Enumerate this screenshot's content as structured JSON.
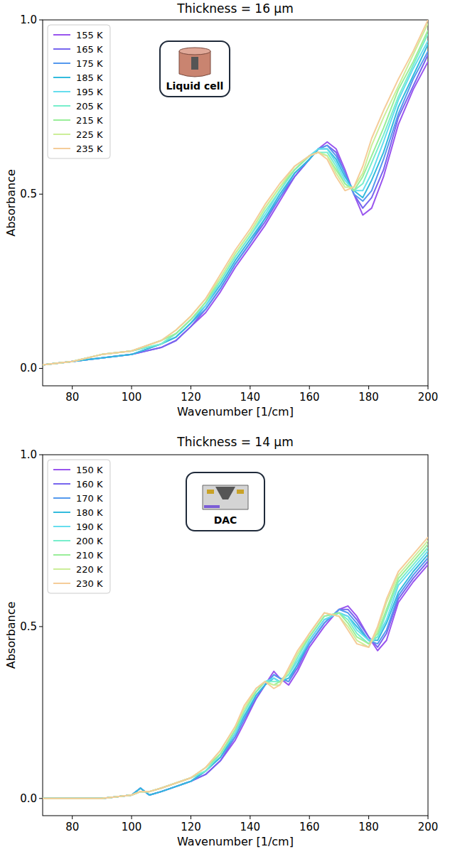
{
  "chart_data": [
    {
      "type": "line",
      "title": "Thickness = 16 µm",
      "x_label": "Wavenumber [1/cm]",
      "y_label": "Absorbance",
      "annotation": "Liquid cell",
      "x": [
        70,
        80,
        90,
        100,
        110,
        115,
        120,
        125,
        130,
        135,
        140,
        145,
        150,
        155,
        160,
        163,
        166,
        169,
        172,
        175,
        178,
        181,
        185,
        190,
        195,
        200
      ],
      "series": [
        {
          "name": "155 K",
          "color": "#9955ee",
          "values": [
            0.01,
            0.02,
            0.03,
            0.04,
            0.06,
            0.08,
            0.12,
            0.16,
            0.22,
            0.29,
            0.35,
            0.41,
            0.48,
            0.55,
            0.6,
            0.63,
            0.65,
            0.63,
            0.57,
            0.5,
            0.44,
            0.46,
            0.55,
            0.7,
            0.8,
            0.88
          ]
        },
        {
          "name": "165 K",
          "color": "#7766ee",
          "values": [
            0.01,
            0.02,
            0.03,
            0.04,
            0.06,
            0.08,
            0.12,
            0.17,
            0.23,
            0.3,
            0.36,
            0.42,
            0.49,
            0.55,
            0.6,
            0.63,
            0.64,
            0.62,
            0.56,
            0.5,
            0.46,
            0.49,
            0.57,
            0.72,
            0.81,
            0.9
          ]
        },
        {
          "name": "175 K",
          "color": "#5599ee",
          "values": [
            0.01,
            0.02,
            0.03,
            0.04,
            0.07,
            0.09,
            0.13,
            0.17,
            0.23,
            0.3,
            0.36,
            0.43,
            0.49,
            0.56,
            0.6,
            0.63,
            0.64,
            0.61,
            0.56,
            0.5,
            0.48,
            0.51,
            0.6,
            0.73,
            0.83,
            0.91
          ]
        },
        {
          "name": "185 K",
          "color": "#33bbdd",
          "values": [
            0.01,
            0.02,
            0.03,
            0.04,
            0.07,
            0.09,
            0.13,
            0.18,
            0.24,
            0.31,
            0.37,
            0.43,
            0.5,
            0.56,
            0.6,
            0.63,
            0.63,
            0.6,
            0.55,
            0.51,
            0.49,
            0.54,
            0.62,
            0.75,
            0.84,
            0.93
          ]
        },
        {
          "name": "195 K",
          "color": "#66ddee",
          "values": [
            0.01,
            0.02,
            0.04,
            0.05,
            0.07,
            0.1,
            0.14,
            0.18,
            0.25,
            0.32,
            0.38,
            0.44,
            0.51,
            0.57,
            0.61,
            0.63,
            0.63,
            0.59,
            0.54,
            0.51,
            0.51,
            0.56,
            0.65,
            0.77,
            0.86,
            0.94
          ]
        },
        {
          "name": "205 K",
          "color": "#77eecc",
          "values": [
            0.01,
            0.02,
            0.04,
            0.05,
            0.07,
            0.1,
            0.14,
            0.19,
            0.25,
            0.32,
            0.38,
            0.45,
            0.51,
            0.57,
            0.61,
            0.62,
            0.62,
            0.58,
            0.53,
            0.51,
            0.53,
            0.59,
            0.67,
            0.78,
            0.87,
            0.96
          ]
        },
        {
          "name": "215 K",
          "color": "#99ee99",
          "values": [
            0.01,
            0.02,
            0.04,
            0.05,
            0.08,
            0.1,
            0.14,
            0.19,
            0.26,
            0.33,
            0.39,
            0.46,
            0.52,
            0.57,
            0.61,
            0.62,
            0.61,
            0.57,
            0.53,
            0.51,
            0.55,
            0.61,
            0.69,
            0.8,
            0.88,
            0.97
          ]
        },
        {
          "name": "225 K",
          "color": "#ccee99",
          "values": [
            0.01,
            0.02,
            0.04,
            0.05,
            0.08,
            0.11,
            0.15,
            0.2,
            0.26,
            0.33,
            0.39,
            0.46,
            0.52,
            0.58,
            0.61,
            0.62,
            0.61,
            0.56,
            0.52,
            0.52,
            0.56,
            0.64,
            0.72,
            0.81,
            0.9,
            0.99
          ]
        },
        {
          "name": "235 K",
          "color": "#f5cc99",
          "values": [
            0.01,
            0.02,
            0.04,
            0.05,
            0.08,
            0.11,
            0.15,
            0.2,
            0.27,
            0.34,
            0.4,
            0.47,
            0.53,
            0.58,
            0.61,
            0.62,
            0.6,
            0.55,
            0.51,
            0.52,
            0.58,
            0.66,
            0.74,
            0.83,
            0.91,
            1.0
          ]
        }
      ],
      "xlim": [
        70,
        200
      ],
      "ylim": [
        -0.05,
        1.0
      ],
      "xticks": [
        80,
        100,
        120,
        140,
        160,
        180,
        200
      ],
      "yticks": [
        {
          "value": 0,
          "label": "0.0"
        },
        {
          "value": 0.5,
          "label": "0.5"
        },
        {
          "value": 1,
          "label": "1.0"
        }
      ],
      "legend": "upper left"
    },
    {
      "type": "line",
      "title": "Thickness = 14 µm",
      "x_label": "Wavenumber [1/cm]",
      "y_label": "Absorbance",
      "annotation": "DAC",
      "x": [
        70,
        80,
        90,
        100,
        103,
        106,
        110,
        120,
        125,
        130,
        135,
        138,
        142,
        145,
        148,
        150,
        153,
        156,
        160,
        165,
        170,
        173,
        176,
        180,
        183,
        186,
        190,
        195,
        200
      ],
      "series": [
        {
          "name": "150 K",
          "color": "#9955ee",
          "values": [
            0,
            0,
            0,
            0.01,
            0.03,
            0.01,
            0.02,
            0.05,
            0.07,
            0.11,
            0.17,
            0.22,
            0.29,
            0.33,
            0.37,
            0.35,
            0.33,
            0.37,
            0.44,
            0.5,
            0.55,
            0.56,
            0.53,
            0.47,
            0.43,
            0.46,
            0.57,
            0.63,
            0.68
          ]
        },
        {
          "name": "160 K",
          "color": "#7766ee",
          "values": [
            0,
            0,
            0,
            0.01,
            0.03,
            0.01,
            0.02,
            0.05,
            0.07,
            0.11,
            0.18,
            0.23,
            0.29,
            0.33,
            0.36,
            0.35,
            0.34,
            0.38,
            0.45,
            0.51,
            0.55,
            0.55,
            0.52,
            0.47,
            0.44,
            0.48,
            0.58,
            0.64,
            0.69
          ]
        },
        {
          "name": "170 K",
          "color": "#5599ee",
          "values": [
            0,
            0,
            0,
            0.01,
            0.03,
            0.01,
            0.02,
            0.05,
            0.08,
            0.12,
            0.18,
            0.23,
            0.3,
            0.33,
            0.36,
            0.35,
            0.34,
            0.39,
            0.45,
            0.51,
            0.55,
            0.54,
            0.51,
            0.46,
            0.45,
            0.49,
            0.59,
            0.65,
            0.7
          ]
        },
        {
          "name": "180 K",
          "color": "#33bbdd",
          "values": [
            0,
            0,
            0,
            0.01,
            0.03,
            0.01,
            0.02,
            0.05,
            0.08,
            0.12,
            0.19,
            0.24,
            0.3,
            0.33,
            0.35,
            0.34,
            0.35,
            0.39,
            0.46,
            0.52,
            0.54,
            0.53,
            0.5,
            0.46,
            0.46,
            0.51,
            0.6,
            0.66,
            0.71
          ]
        },
        {
          "name": "190 K",
          "color": "#66ddee",
          "values": [
            0,
            0,
            0,
            0.01,
            0.02,
            0.02,
            0.03,
            0.06,
            0.08,
            0.13,
            0.19,
            0.25,
            0.31,
            0.34,
            0.35,
            0.34,
            0.36,
            0.4,
            0.46,
            0.52,
            0.54,
            0.53,
            0.49,
            0.46,
            0.47,
            0.52,
            0.62,
            0.67,
            0.72
          ]
        },
        {
          "name": "200 K",
          "color": "#77eecc",
          "values": [
            0,
            0,
            0,
            0.01,
            0.02,
            0.02,
            0.03,
            0.06,
            0.08,
            0.13,
            0.2,
            0.25,
            0.31,
            0.34,
            0.34,
            0.34,
            0.36,
            0.41,
            0.47,
            0.53,
            0.54,
            0.52,
            0.48,
            0.45,
            0.47,
            0.54,
            0.63,
            0.68,
            0.73
          ]
        },
        {
          "name": "210 K",
          "color": "#99ee99",
          "values": [
            0,
            0,
            0,
            0.01,
            0.02,
            0.02,
            0.03,
            0.06,
            0.09,
            0.13,
            0.2,
            0.26,
            0.31,
            0.34,
            0.33,
            0.34,
            0.37,
            0.42,
            0.47,
            0.53,
            0.54,
            0.51,
            0.47,
            0.45,
            0.48,
            0.55,
            0.64,
            0.69,
            0.74
          ]
        },
        {
          "name": "220 K",
          "color": "#ccee99",
          "values": [
            0,
            0,
            0,
            0.01,
            0.02,
            0.02,
            0.03,
            0.06,
            0.09,
            0.14,
            0.21,
            0.26,
            0.32,
            0.34,
            0.33,
            0.33,
            0.37,
            0.42,
            0.48,
            0.54,
            0.53,
            0.5,
            0.46,
            0.44,
            0.49,
            0.57,
            0.65,
            0.7,
            0.75
          ]
        },
        {
          "name": "230 K",
          "color": "#f5cc99",
          "values": [
            0,
            0,
            0,
            0.01,
            0.02,
            0.02,
            0.03,
            0.06,
            0.09,
            0.14,
            0.21,
            0.27,
            0.32,
            0.34,
            0.32,
            0.33,
            0.38,
            0.43,
            0.48,
            0.54,
            0.53,
            0.49,
            0.45,
            0.44,
            0.5,
            0.58,
            0.66,
            0.71,
            0.76
          ]
        }
      ],
      "xlim": [
        70,
        200
      ],
      "ylim": [
        -0.05,
        1.0
      ],
      "xticks": [
        80,
        100,
        120,
        140,
        160,
        180,
        200
      ],
      "yticks": [
        {
          "value": 0,
          "label": "0.0"
        },
        {
          "value": 0.5,
          "label": "0.5"
        },
        {
          "value": 1,
          "label": "1.0"
        }
      ],
      "legend": "upper left"
    }
  ]
}
